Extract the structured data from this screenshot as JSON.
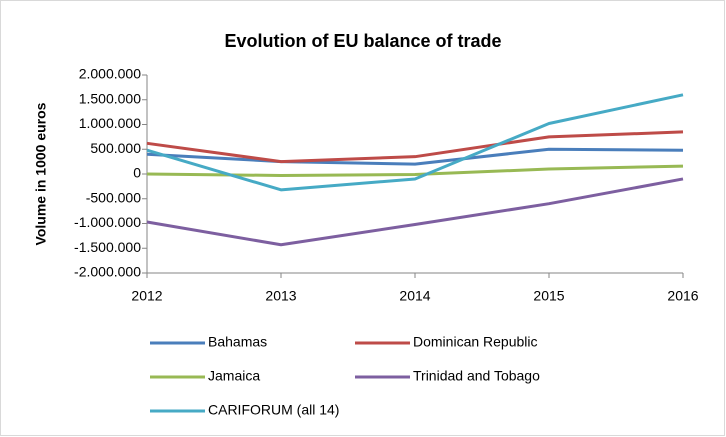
{
  "chart_data": {
    "type": "line",
    "title": "Evolution of EU balance of trade",
    "ylabel": "Volume in 1000 euros",
    "x": [
      2012,
      2013,
      2014,
      2015,
      2016
    ],
    "xlim": [
      2012,
      2016
    ],
    "xticks": [
      2012,
      2013,
      2014,
      2015,
      2016
    ],
    "ylim": [
      -2000000,
      2000000
    ],
    "yticks": [
      {
        "value": -2000000,
        "label": "-2.000.000"
      },
      {
        "value": -1500000,
        "label": "-1.500.000"
      },
      {
        "value": -1000000,
        "label": "-1.000.000"
      },
      {
        "value": -500000,
        "label": "-500.000"
      },
      0,
      {
        "value": 500000,
        "label": "500.000"
      },
      {
        "value": 1000000,
        "label": "1.000.000"
      },
      {
        "value": 1500000,
        "label": "1.500.000"
      },
      {
        "value": 2000000,
        "label": "2.000.000"
      }
    ],
    "grid": false,
    "legend": "bottom",
    "series": [
      {
        "name": "Bahamas",
        "color": "#4a7ebb",
        "values": [
          400000,
          250000,
          200000,
          500000,
          480000
        ]
      },
      {
        "name": "Dominican Republic",
        "color": "#be4b48",
        "values": [
          620000,
          250000,
          350000,
          750000,
          850000
        ]
      },
      {
        "name": "Jamaica",
        "color": "#98b954",
        "values": [
          0,
          -30000,
          -10000,
          100000,
          160000
        ]
      },
      {
        "name": "Trinidad and Tobago",
        "color": "#7d5fa0",
        "values": [
          -970000,
          -1430000,
          -1020000,
          -600000,
          -100000
        ]
      },
      {
        "name": "CARIFORUM (all 14)",
        "color": "#46aac5",
        "values": [
          480000,
          -320000,
          -100000,
          1020000,
          1600000
        ]
      }
    ]
  }
}
